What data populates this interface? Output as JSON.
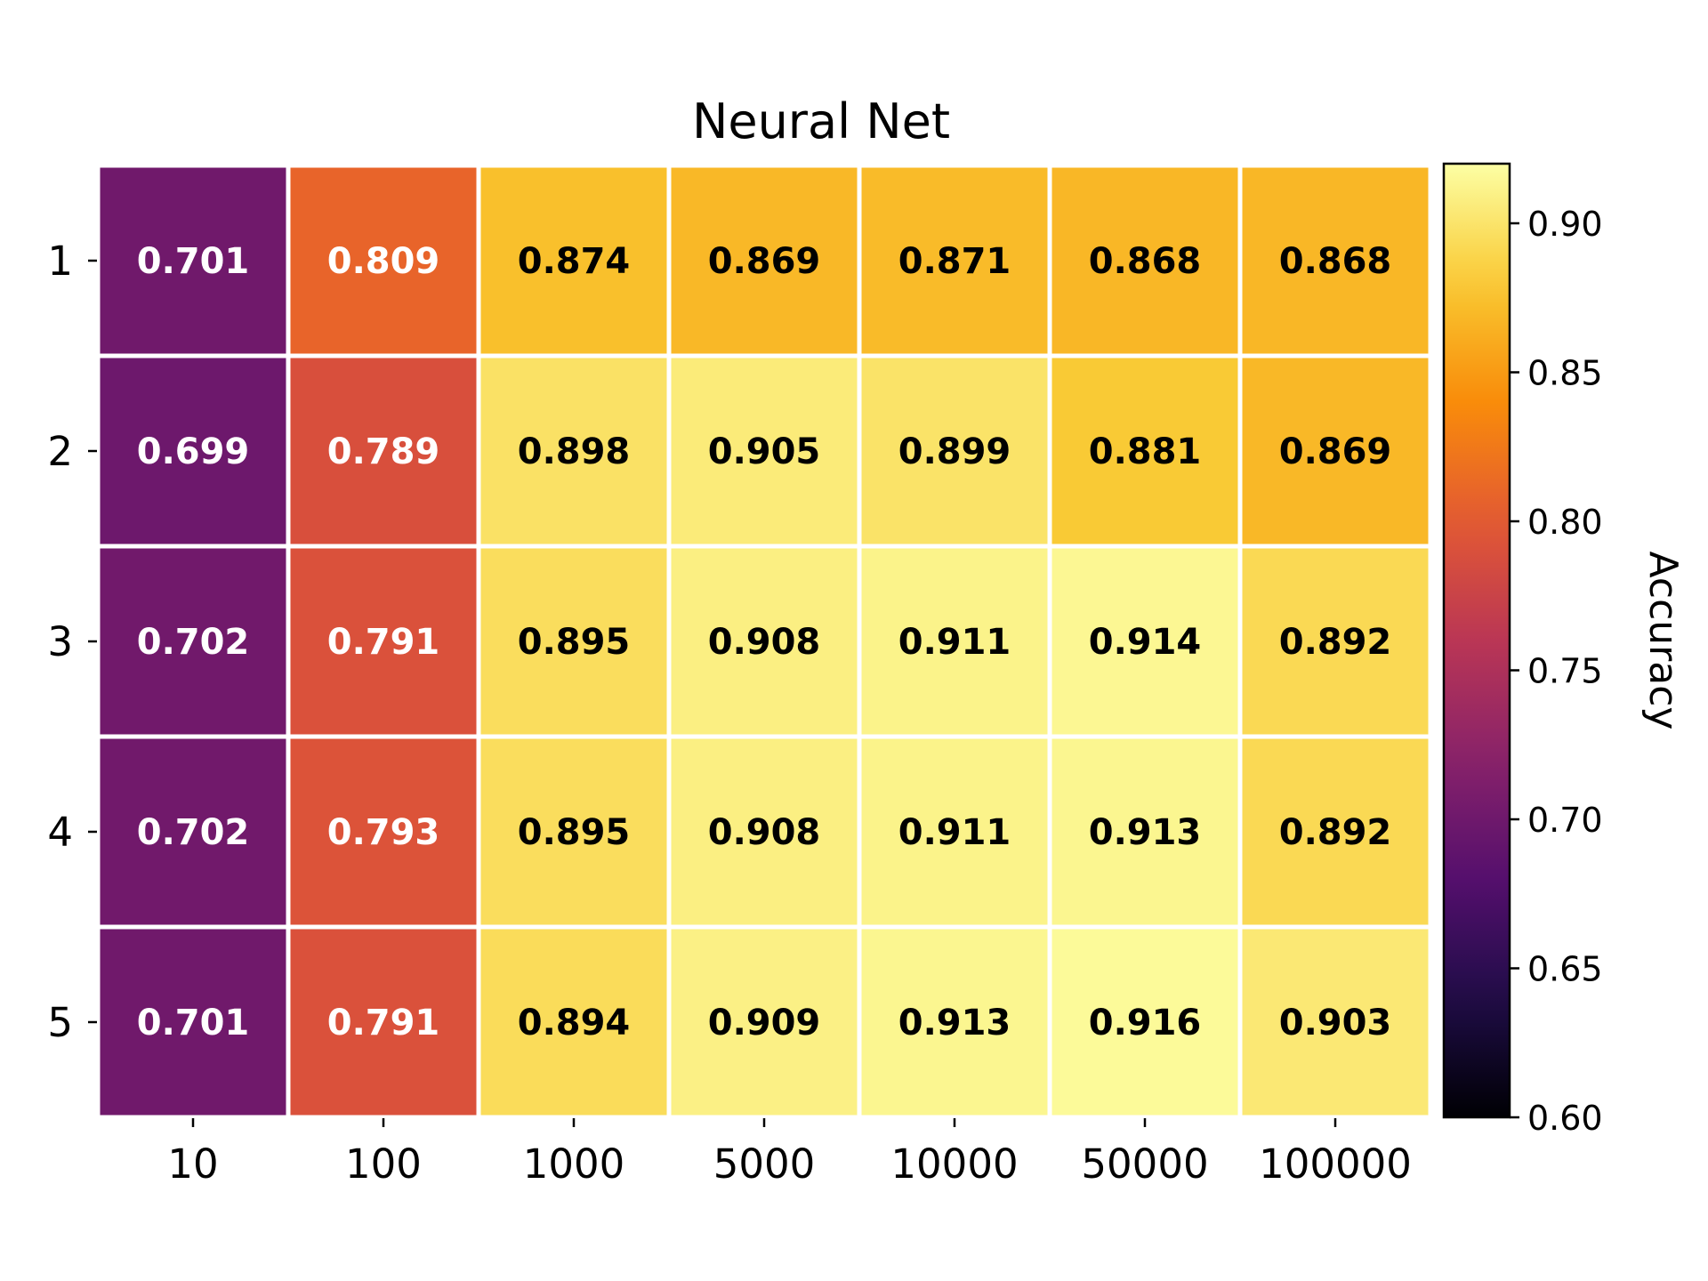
{
  "chart_data": {
    "type": "heatmap",
    "title": "Neural Net",
    "xlabel": "",
    "ylabel": "",
    "x_categories": [
      "10",
      "100",
      "1000",
      "5000",
      "10000",
      "50000",
      "100000"
    ],
    "y_categories": [
      "1",
      "2",
      "3",
      "4",
      "5"
    ],
    "values": [
      [
        0.701,
        0.809,
        0.874,
        0.869,
        0.871,
        0.868,
        0.868
      ],
      [
        0.699,
        0.789,
        0.898,
        0.905,
        0.899,
        0.881,
        0.869
      ],
      [
        0.702,
        0.791,
        0.895,
        0.908,
        0.911,
        0.914,
        0.892
      ],
      [
        0.702,
        0.793,
        0.895,
        0.908,
        0.911,
        0.913,
        0.892
      ],
      [
        0.701,
        0.791,
        0.894,
        0.909,
        0.913,
        0.916,
        0.903
      ]
    ],
    "value_labels": [
      [
        "0.701",
        "0.809",
        "0.874",
        "0.869",
        "0.871",
        "0.868",
        "0.868"
      ],
      [
        "0.699",
        "0.789",
        "0.898",
        "0.905",
        "0.899",
        "0.881",
        "0.869"
      ],
      [
        "0.702",
        "0.791",
        "0.895",
        "0.908",
        "0.911",
        "0.914",
        "0.892"
      ],
      [
        "0.702",
        "0.793",
        "0.895",
        "0.908",
        "0.911",
        "0.913",
        "0.892"
      ],
      [
        "0.701",
        "0.791",
        "0.894",
        "0.909",
        "0.913",
        "0.916",
        "0.903"
      ]
    ],
    "colormap": "inferno",
    "colorbar": {
      "label": "Accuracy",
      "range": [
        0.6,
        0.92
      ],
      "ticks": [
        0.6,
        0.65,
        0.7,
        0.75,
        0.8,
        0.85,
        0.9
      ],
      "tick_labels": [
        "0.60",
        "0.65",
        "0.70",
        "0.75",
        "0.80",
        "0.85",
        "0.90"
      ]
    },
    "grid": false,
    "cell_separator_color": "#ffffff"
  }
}
